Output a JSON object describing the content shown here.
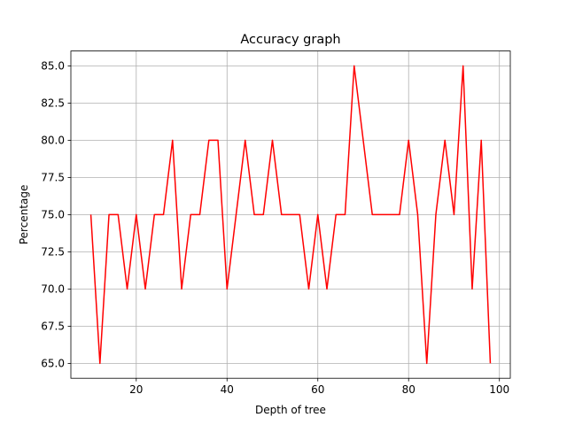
{
  "chart_data": {
    "type": "line",
    "title": "Accuracy graph",
    "xlabel": "Depth of tree",
    "ylabel": "Percentage",
    "xlim": [
      5.6,
      102.4
    ],
    "ylim": [
      64.0,
      86.0
    ],
    "x_ticks": [
      20,
      40,
      60,
      80,
      100
    ],
    "y_ticks": [
      65.0,
      67.5,
      70.0,
      72.5,
      75.0,
      77.5,
      80.0,
      82.5,
      85.0
    ],
    "x_tick_labels": [
      "20",
      "40",
      "60",
      "80",
      "100"
    ],
    "y_tick_labels": [
      "65.0",
      "67.5",
      "70.0",
      "72.5",
      "75.0",
      "77.5",
      "80.0",
      "82.5",
      "85.0"
    ],
    "grid": true,
    "series": [
      {
        "color": "#ff0000",
        "x": [
          10,
          12,
          14,
          16,
          18,
          20,
          22,
          24,
          26,
          28,
          30,
          32,
          34,
          36,
          38,
          40,
          42,
          44,
          46,
          48,
          50,
          52,
          54,
          56,
          58,
          60,
          62,
          64,
          66,
          68,
          70,
          72,
          74,
          76,
          78,
          80,
          82,
          84,
          86,
          88,
          90,
          92,
          94,
          96,
          98
        ],
        "values": [
          75,
          65,
          75,
          75,
          70,
          75,
          70,
          75,
          75,
          80,
          70,
          75,
          75,
          80,
          80,
          70,
          75,
          80,
          75,
          75,
          80,
          75,
          75,
          75,
          70,
          75,
          70,
          75,
          75,
          85,
          80,
          75,
          75,
          75,
          75,
          80,
          75,
          65,
          75,
          80,
          75,
          85,
          70,
          80,
          65
        ]
      }
    ]
  }
}
